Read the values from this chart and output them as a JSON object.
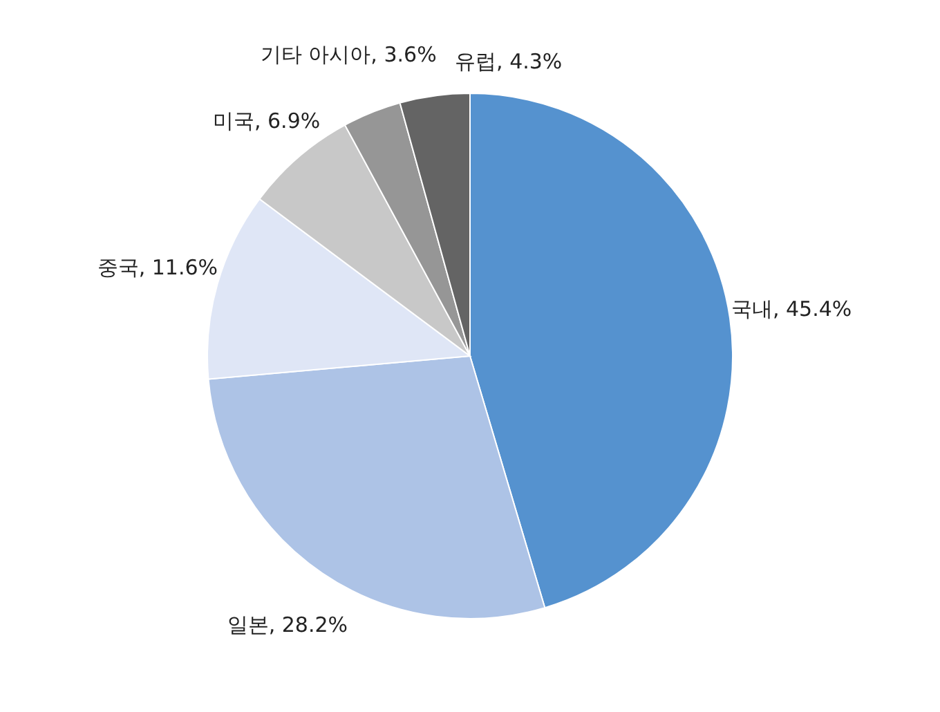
{
  "chart_data": {
    "type": "pie",
    "categories": [
      "국내",
      "일본",
      "중국",
      "미국",
      "기타 아시아",
      "유럽"
    ],
    "values": [
      45.4,
      28.2,
      11.6,
      6.9,
      3.6,
      4.3
    ],
    "value_labels": [
      "45.4%",
      "28.2%",
      "11.6%",
      "6.9%",
      "3.6%",
      "4.3%"
    ],
    "colors": [
      "#5592cf",
      "#adc3e6",
      "#dfe6f6",
      "#c8c8c8",
      "#969696",
      "#646464"
    ],
    "legend": false
  }
}
